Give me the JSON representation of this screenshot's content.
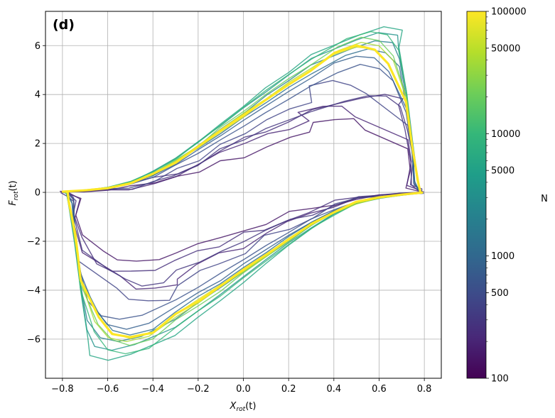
{
  "chart_data": {
    "type": "line",
    "panel_label": "(d)",
    "xlabel_main": "X",
    "xlabel_sub": "rot",
    "xlabel_suffix": "(t)",
    "ylabel_main": "F",
    "ylabel_sub": "rot",
    "ylabel_suffix": "(t)",
    "xlim": [
      -0.875,
      0.875
    ],
    "ylim": [
      -7.6,
      7.4
    ],
    "xticks": [
      -0.8,
      -0.6,
      -0.4,
      -0.2,
      0.0,
      0.2,
      0.4,
      0.6,
      0.8
    ],
    "xtick_labels": [
      "−0.8",
      "−0.6",
      "−0.4",
      "−0.2",
      "0.0",
      "0.2",
      "0.4",
      "0.6",
      "0.8"
    ],
    "yticks": [
      -6,
      -4,
      -2,
      0,
      2,
      4,
      6
    ],
    "ytick_labels": [
      "−6",
      "−4",
      "−2",
      "0",
      "2",
      "4",
      "6"
    ],
    "grid": true,
    "colorbar": {
      "label": "N",
      "scale": "log",
      "range": [
        100,
        100000
      ],
      "colormap": "viridis",
      "ticks": [
        100,
        500,
        1000,
        5000,
        10000,
        50000,
        100000
      ],
      "tick_labels": [
        "100",
        "500",
        "1000",
        "5000",
        "10000",
        "50000",
        "100000"
      ]
    },
    "colormap_stops": [
      "#440154",
      "#482878",
      "#3e4989",
      "#31688e",
      "#26828e",
      "#1f9e89",
      "#35b779",
      "#6ece58",
      "#b5de2b",
      "#fde725"
    ],
    "series": [
      {
        "N": 150,
        "peak_top": [
          0.4,
          2.95
        ],
        "peak_bottom": [
          -0.48,
          -2.85
        ],
        "drop_x": 0.72,
        "irregular": true
      },
      {
        "N": 200,
        "peak_top": [
          0.35,
          3.6
        ],
        "peak_bottom": [
          -0.4,
          -4.05
        ],
        "drop_x": 0.73,
        "irregular": true
      },
      {
        "N": 250,
        "peak_top": [
          0.62,
          4.05
        ],
        "peak_bottom": [
          -0.5,
          -3.3
        ],
        "drop_x": 0.74,
        "irregular": true
      },
      {
        "N": 300,
        "peak_top": [
          0.55,
          3.95
        ],
        "peak_bottom": [
          -0.45,
          -3.75
        ],
        "drop_x": 0.74,
        "irregular": true
      },
      {
        "N": 400,
        "peak_top": [
          0.4,
          4.55
        ],
        "peak_bottom": [
          -0.42,
          -4.45
        ],
        "drop_x": 0.75,
        "irregular": true
      },
      {
        "N": 600,
        "peak_top": [
          0.52,
          5.2
        ],
        "peak_bottom": [
          -0.55,
          -5.2
        ],
        "drop_x": 0.75,
        "irregular": false
      },
      {
        "N": 800,
        "peak_top": [
          0.5,
          5.6
        ],
        "peak_bottom": [
          -0.52,
          -5.55
        ],
        "drop_x": 0.76,
        "irregular": false
      },
      {
        "N": 1200,
        "peak_top": [
          0.55,
          5.85
        ],
        "peak_bottom": [
          -0.5,
          -5.8
        ],
        "drop_x": 0.76,
        "irregular": false
      },
      {
        "N": 2000,
        "peak_top": [
          0.58,
          6.2
        ],
        "peak_bottom": [
          -0.55,
          -6.1
        ],
        "drop_x": 0.77,
        "irregular": false
      },
      {
        "N": 3500,
        "peak_top": [
          0.6,
          6.55
        ],
        "peak_bottom": [
          -0.58,
          -6.5
        ],
        "drop_x": 0.77,
        "irregular": false
      },
      {
        "N": 6000,
        "peak_top": [
          0.62,
          6.75
        ],
        "peak_bottom": [
          -0.6,
          -6.9
        ],
        "drop_x": 0.77,
        "irregular": false
      },
      {
        "N": 10000,
        "peak_top": [
          0.56,
          6.6
        ],
        "peak_bottom": [
          -0.52,
          -6.6
        ],
        "drop_x": 0.77,
        "irregular": false
      },
      {
        "N": 20000,
        "peak_top": [
          0.52,
          6.3
        ],
        "peak_bottom": [
          -0.5,
          -6.25
        ],
        "drop_x": 0.77,
        "irregular": false
      },
      {
        "N": 40000,
        "peak_top": [
          0.52,
          6.1
        ],
        "peak_bottom": [
          -0.52,
          -6.1
        ],
        "drop_x": 0.77,
        "irregular": false
      },
      {
        "N": 70000,
        "peak_top": [
          0.5,
          5.95
        ],
        "peak_bottom": [
          -0.5,
          -5.95
        ],
        "drop_x": 0.77,
        "irregular": false
      },
      {
        "N": 100000,
        "peak_top": [
          0.5,
          6.0
        ],
        "peak_bottom": [
          -0.5,
          -5.95
        ],
        "drop_x": 0.77,
        "irregular": false
      }
    ]
  }
}
